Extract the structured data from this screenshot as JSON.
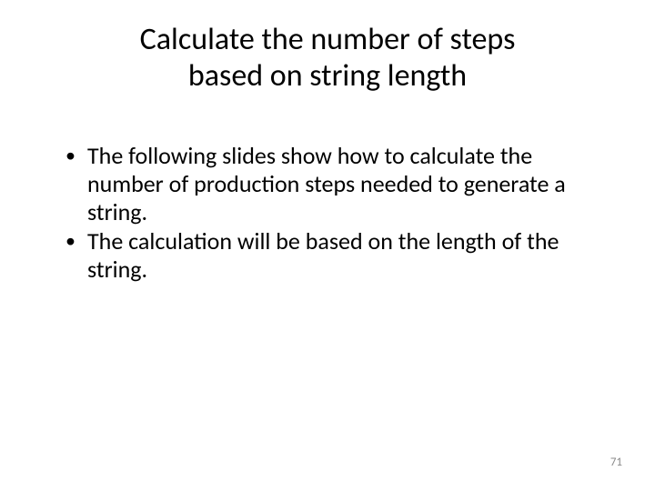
{
  "slide": {
    "title_line1": "Calculate the number of steps",
    "title_line2": "based on string length",
    "bullets": [
      "The following slides show how to calculate the number of production steps needed to generate a string.",
      "The calculation will be based on the length of the string."
    ],
    "page_number": "71"
  },
  "style": {
    "background_color": "#ffffff",
    "text_color": "#000000",
    "title_fontsize": 34,
    "body_fontsize": 26,
    "page_number_color": "#8b8b8b",
    "page_number_fontsize": 13,
    "font_family": "Calibri"
  }
}
